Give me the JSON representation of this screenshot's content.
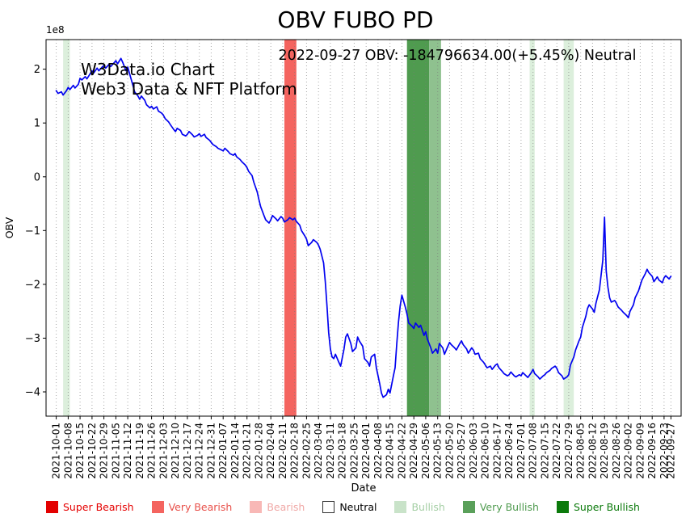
{
  "title": "OBV FUBO PD",
  "annotation": "2022-09-27 OBV: -184796634.00(+5.45%) Neutral",
  "watermark": {
    "line1": "W3Data.io Chart",
    "line2": "Web3 Data & NFT Platform"
  },
  "chart_data": {
    "type": "line",
    "title": "OBV FUBO PD",
    "xlabel": "Date",
    "ylabel": "OBV",
    "offset_label": "1e8",
    "value_unit": "1e8",
    "x_start_date": "2021-10-01",
    "ylim": [
      -4.45,
      2.55
    ],
    "yticks": [
      2,
      1,
      0,
      -1,
      -2,
      -3,
      -4
    ],
    "grid": "vertical-dotted",
    "line_color": "#0202f0",
    "x_tick_labels": [
      "2021-10-01",
      "2021-10-08",
      "2021-10-15",
      "2021-10-22",
      "2021-10-29",
      "2021-11-05",
      "2021-11-12",
      "2021-11-19",
      "2021-11-26",
      "2021-12-03",
      "2021-12-10",
      "2021-12-17",
      "2021-12-24",
      "2021-12-31",
      "2022-01-07",
      "2022-01-14",
      "2022-01-21",
      "2022-01-28",
      "2022-02-04",
      "2022-02-11",
      "2022-02-18",
      "2022-02-25",
      "2022-03-04",
      "2022-03-11",
      "2022-03-18",
      "2022-03-25",
      "2022-04-01",
      "2022-04-08",
      "2022-04-15",
      "2022-04-22",
      "2022-04-29",
      "2022-05-06",
      "2022-05-13",
      "2022-05-20",
      "2022-05-27",
      "2022-06-03",
      "2022-06-10",
      "2022-06-17",
      "2022-06-24",
      "2022-07-01",
      "2022-07-08",
      "2022-07-15",
      "2022-07-22",
      "2022-07-29",
      "2022-08-05",
      "2022-08-12",
      "2022-08-19",
      "2022-08-26",
      "2022-09-02",
      "2022-09-09",
      "2022-09-16",
      "2022-09-23",
      "2022-09-27"
    ],
    "band_colors": {
      "very_bearish": "#f4645f",
      "very_bullish": "#4f9b4f",
      "bullish": "#8fc18f",
      "bullish_light": "#dcefdc"
    },
    "bands": [
      {
        "from": "2021-10-05",
        "to": "2021-10-09",
        "level": "bullish_light"
      },
      {
        "from": "2022-02-12",
        "to": "2022-02-19",
        "level": "very_bearish"
      },
      {
        "from": "2022-04-25",
        "to": "2022-05-08",
        "level": "very_bullish"
      },
      {
        "from": "2022-05-08",
        "to": "2022-05-15",
        "level": "bullish"
      },
      {
        "from": "2022-07-06",
        "to": "2022-07-09",
        "level": "bullish_light"
      },
      {
        "from": "2022-07-26",
        "to": "2022-08-01",
        "level": "bullish_light"
      }
    ],
    "series": [
      {
        "name": "OBV",
        "x_unit": "days_since_2021-10-01",
        "points": [
          [
            0,
            1.6
          ],
          [
            1,
            1.55
          ],
          [
            3,
            1.58
          ],
          [
            4,
            1.52
          ],
          [
            6,
            1.6
          ],
          [
            7,
            1.66
          ],
          [
            8,
            1.62
          ],
          [
            10,
            1.7
          ],
          [
            11,
            1.65
          ],
          [
            13,
            1.72
          ],
          [
            14,
            1.83
          ],
          [
            15,
            1.8
          ],
          [
            17,
            1.86
          ],
          [
            18,
            1.82
          ],
          [
            20,
            1.92
          ],
          [
            21,
            1.97
          ],
          [
            22,
            1.93
          ],
          [
            24,
            2.02
          ],
          [
            25,
            1.97
          ],
          [
            27,
            2.04
          ],
          [
            28,
            2.07
          ],
          [
            29,
            2.02
          ],
          [
            31,
            2.09
          ],
          [
            32,
            2.05
          ],
          [
            34,
            2.12
          ],
          [
            35,
            2.16
          ],
          [
            36,
            2.1
          ],
          [
            38,
            2.2
          ],
          [
            39,
            2.13
          ],
          [
            41,
            1.97
          ],
          [
            42,
            2.04
          ],
          [
            43,
            1.92
          ],
          [
            45,
            1.7
          ],
          [
            46,
            1.58
          ],
          [
            48,
            1.5
          ],
          [
            49,
            1.44
          ],
          [
            50,
            1.5
          ],
          [
            52,
            1.42
          ],
          [
            53,
            1.34
          ],
          [
            55,
            1.28
          ],
          [
            56,
            1.31
          ],
          [
            57,
            1.26
          ],
          [
            59,
            1.3
          ],
          [
            60,
            1.22
          ],
          [
            62,
            1.18
          ],
          [
            63,
            1.14
          ],
          [
            64,
            1.08
          ],
          [
            66,
            1.02
          ],
          [
            67,
            0.97
          ],
          [
            69,
            0.88
          ],
          [
            70,
            0.84
          ],
          [
            71,
            0.9
          ],
          [
            73,
            0.86
          ],
          [
            74,
            0.79
          ],
          [
            76,
            0.76
          ],
          [
            77,
            0.79
          ],
          [
            78,
            0.84
          ],
          [
            80,
            0.78
          ],
          [
            81,
            0.74
          ],
          [
            83,
            0.77
          ],
          [
            84,
            0.8
          ],
          [
            85,
            0.75
          ],
          [
            87,
            0.79
          ],
          [
            88,
            0.73
          ],
          [
            90,
            0.68
          ],
          [
            91,
            0.64
          ],
          [
            92,
            0.6
          ],
          [
            94,
            0.56
          ],
          [
            95,
            0.53
          ],
          [
            97,
            0.5
          ],
          [
            98,
            0.48
          ],
          [
            99,
            0.53
          ],
          [
            101,
            0.47
          ],
          [
            102,
            0.43
          ],
          [
            104,
            0.4
          ],
          [
            105,
            0.43
          ],
          [
            106,
            0.37
          ],
          [
            108,
            0.32
          ],
          [
            109,
            0.28
          ],
          [
            111,
            0.22
          ],
          [
            112,
            0.17
          ],
          [
            113,
            0.1
          ],
          [
            115,
            0.02
          ],
          [
            116,
            -0.1
          ],
          [
            118,
            -0.28
          ],
          [
            119,
            -0.42
          ],
          [
            120,
            -0.55
          ],
          [
            122,
            -0.72
          ],
          [
            123,
            -0.8
          ],
          [
            125,
            -0.86
          ],
          [
            126,
            -0.8
          ],
          [
            127,
            -0.72
          ],
          [
            129,
            -0.78
          ],
          [
            130,
            -0.82
          ],
          [
            132,
            -0.74
          ],
          [
            133,
            -0.77
          ],
          [
            134,
            -0.84
          ],
          [
            136,
            -0.8
          ],
          [
            137,
            -0.76
          ],
          [
            139,
            -0.8
          ],
          [
            140,
            -0.77
          ],
          [
            141,
            -0.83
          ],
          [
            143,
            -0.9
          ],
          [
            144,
            -1.0
          ],
          [
            146,
            -1.1
          ],
          [
            147,
            -1.16
          ],
          [
            148,
            -1.28
          ],
          [
            150,
            -1.22
          ],
          [
            151,
            -1.17
          ],
          [
            153,
            -1.22
          ],
          [
            154,
            -1.27
          ],
          [
            155,
            -1.35
          ],
          [
            157,
            -1.6
          ],
          [
            158,
            -1.95
          ],
          [
            159,
            -2.4
          ],
          [
            160,
            -2.9
          ],
          [
            161,
            -3.2
          ],
          [
            162,
            -3.35
          ],
          [
            163,
            -3.38
          ],
          [
            164,
            -3.3
          ],
          [
            166,
            -3.45
          ],
          [
            167,
            -3.52
          ],
          [
            169,
            -3.2
          ],
          [
            170,
            -2.98
          ],
          [
            171,
            -2.92
          ],
          [
            173,
            -3.1
          ],
          [
            174,
            -3.25
          ],
          [
            176,
            -3.18
          ],
          [
            177,
            -2.98
          ],
          [
            178,
            -3.05
          ],
          [
            180,
            -3.15
          ],
          [
            181,
            -3.38
          ],
          [
            183,
            -3.45
          ],
          [
            184,
            -3.52
          ],
          [
            185,
            -3.35
          ],
          [
            187,
            -3.3
          ],
          [
            188,
            -3.55
          ],
          [
            190,
            -3.85
          ],
          [
            191,
            -4.02
          ],
          [
            192,
            -4.1
          ],
          [
            194,
            -4.05
          ],
          [
            195,
            -3.95
          ],
          [
            196,
            -4.02
          ],
          [
            198,
            -3.7
          ],
          [
            199,
            -3.55
          ],
          [
            200,
            -3.1
          ],
          [
            201,
            -2.7
          ],
          [
            202,
            -2.4
          ],
          [
            203,
            -2.2
          ],
          [
            205,
            -2.42
          ],
          [
            206,
            -2.55
          ],
          [
            207,
            -2.72
          ],
          [
            209,
            -2.78
          ],
          [
            210,
            -2.82
          ],
          [
            211,
            -2.72
          ],
          [
            213,
            -2.8
          ],
          [
            214,
            -2.76
          ],
          [
            216,
            -2.95
          ],
          [
            217,
            -2.88
          ],
          [
            218,
            -3.02
          ],
          [
            220,
            -3.18
          ],
          [
            221,
            -3.28
          ],
          [
            223,
            -3.2
          ],
          [
            224,
            -3.28
          ],
          [
            225,
            -3.1
          ],
          [
            227,
            -3.18
          ],
          [
            228,
            -3.3
          ],
          [
            230,
            -3.15
          ],
          [
            231,
            -3.08
          ],
          [
            232,
            -3.12
          ],
          [
            234,
            -3.18
          ],
          [
            235,
            -3.22
          ],
          [
            237,
            -3.1
          ],
          [
            238,
            -3.05
          ],
          [
            239,
            -3.12
          ],
          [
            241,
            -3.2
          ],
          [
            242,
            -3.28
          ],
          [
            244,
            -3.18
          ],
          [
            245,
            -3.22
          ],
          [
            246,
            -3.3
          ],
          [
            248,
            -3.28
          ],
          [
            249,
            -3.38
          ],
          [
            251,
            -3.45
          ],
          [
            252,
            -3.5
          ],
          [
            253,
            -3.55
          ],
          [
            255,
            -3.52
          ],
          [
            256,
            -3.58
          ],
          [
            258,
            -3.5
          ],
          [
            259,
            -3.48
          ],
          [
            260,
            -3.55
          ],
          [
            262,
            -3.62
          ],
          [
            263,
            -3.66
          ],
          [
            265,
            -3.7
          ],
          [
            266,
            -3.68
          ],
          [
            267,
            -3.63
          ],
          [
            269,
            -3.7
          ],
          [
            270,
            -3.72
          ],
          [
            272,
            -3.68
          ],
          [
            273,
            -3.7
          ],
          [
            274,
            -3.64
          ],
          [
            276,
            -3.7
          ],
          [
            277,
            -3.73
          ],
          [
            279,
            -3.64
          ],
          [
            280,
            -3.58
          ],
          [
            281,
            -3.66
          ],
          [
            283,
            -3.72
          ],
          [
            284,
            -3.76
          ],
          [
            286,
            -3.7
          ],
          [
            287,
            -3.68
          ],
          [
            288,
            -3.64
          ],
          [
            290,
            -3.6
          ],
          [
            291,
            -3.56
          ],
          [
            293,
            -3.52
          ],
          [
            294,
            -3.56
          ],
          [
            295,
            -3.64
          ],
          [
            297,
            -3.7
          ],
          [
            298,
            -3.76
          ],
          [
            300,
            -3.72
          ],
          [
            301,
            -3.68
          ],
          [
            302,
            -3.5
          ],
          [
            304,
            -3.35
          ],
          [
            305,
            -3.22
          ],
          [
            307,
            -3.05
          ],
          [
            308,
            -2.98
          ],
          [
            309,
            -2.8
          ],
          [
            311,
            -2.6
          ],
          [
            312,
            -2.45
          ],
          [
            313,
            -2.38
          ],
          [
            315,
            -2.46
          ],
          [
            316,
            -2.52
          ],
          [
            317,
            -2.35
          ],
          [
            319,
            -2.1
          ],
          [
            321,
            -1.55
          ],
          [
            322,
            -0.75
          ],
          [
            323,
            -1.75
          ],
          [
            324,
            -2.05
          ],
          [
            325,
            -2.25
          ],
          [
            326,
            -2.33
          ],
          [
            328,
            -2.3
          ],
          [
            329,
            -2.35
          ],
          [
            330,
            -2.42
          ],
          [
            332,
            -2.48
          ],
          [
            333,
            -2.52
          ],
          [
            335,
            -2.58
          ],
          [
            336,
            -2.62
          ],
          [
            337,
            -2.5
          ],
          [
            339,
            -2.38
          ],
          [
            340,
            -2.25
          ],
          [
            342,
            -2.12
          ],
          [
            343,
            -2.02
          ],
          [
            344,
            -1.92
          ],
          [
            346,
            -1.8
          ],
          [
            347,
            -1.72
          ],
          [
            348,
            -1.78
          ],
          [
            350,
            -1.85
          ],
          [
            351,
            -1.95
          ],
          [
            353,
            -1.86
          ],
          [
            354,
            -1.92
          ],
          [
            356,
            -1.97
          ],
          [
            357,
            -1.88
          ],
          [
            358,
            -1.84
          ],
          [
            360,
            -1.9
          ],
          [
            361,
            -1.85
          ]
        ]
      }
    ]
  },
  "legend": {
    "items": [
      {
        "label": "Super Bearish",
        "swatch": "#e30000",
        "text_color": "#e50000",
        "border": false
      },
      {
        "label": "Very Bearish",
        "swatch": "#f4645f",
        "text_color": "#e8504a",
        "border": false
      },
      {
        "label": "Bearish",
        "swatch": "#f8b8b6",
        "text_color": "#f0a8a6",
        "border": false
      },
      {
        "label": "Neutral",
        "swatch": "#ffffff",
        "text_color": "#000000",
        "border": true
      },
      {
        "label": "Bullish",
        "swatch": "#c9e3c9",
        "text_color": "#a6cfa6",
        "border": false
      },
      {
        "label": "Very Bullish",
        "swatch": "#5aa05a",
        "text_color": "#4e9a4e",
        "border": false
      },
      {
        "label": "Super Bullish",
        "swatch": "#0b7a0b",
        "text_color": "#0c7a0c",
        "border": false
      }
    ]
  }
}
